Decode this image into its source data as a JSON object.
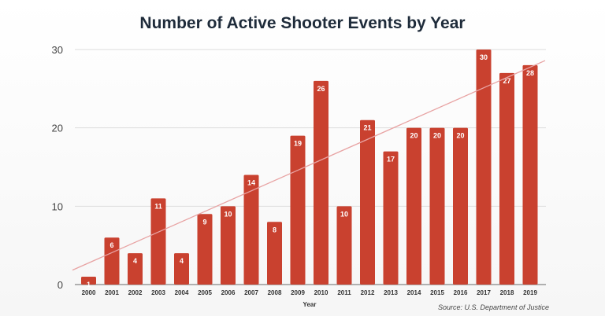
{
  "chart_data": {
    "type": "bar",
    "title": "Number of Active Shooter Events by Year",
    "xlabel": "Year",
    "ylabel": "",
    "categories": [
      "2000",
      "2001",
      "2002",
      "2003",
      "2004",
      "2005",
      "2006",
      "2007",
      "2008",
      "2009",
      "2010",
      "2011",
      "2012",
      "2013",
      "2014",
      "2015",
      "2016",
      "2017",
      "2018",
      "2019"
    ],
    "values": [
      1,
      6,
      4,
      11,
      4,
      9,
      10,
      14,
      8,
      19,
      26,
      10,
      21,
      17,
      20,
      20,
      20,
      30,
      27,
      28
    ],
    "ylim": [
      0,
      30
    ],
    "yticks": [
      0,
      10,
      20,
      30
    ],
    "grid": true,
    "trendline": "linear",
    "data_labels": true,
    "source": "Source: U.S. Department of Justice",
    "colors": {
      "bar": "#c9412f",
      "trendline": "#e8a3a3",
      "grid": "#dddddd",
      "title": "#1e2b3a"
    }
  }
}
